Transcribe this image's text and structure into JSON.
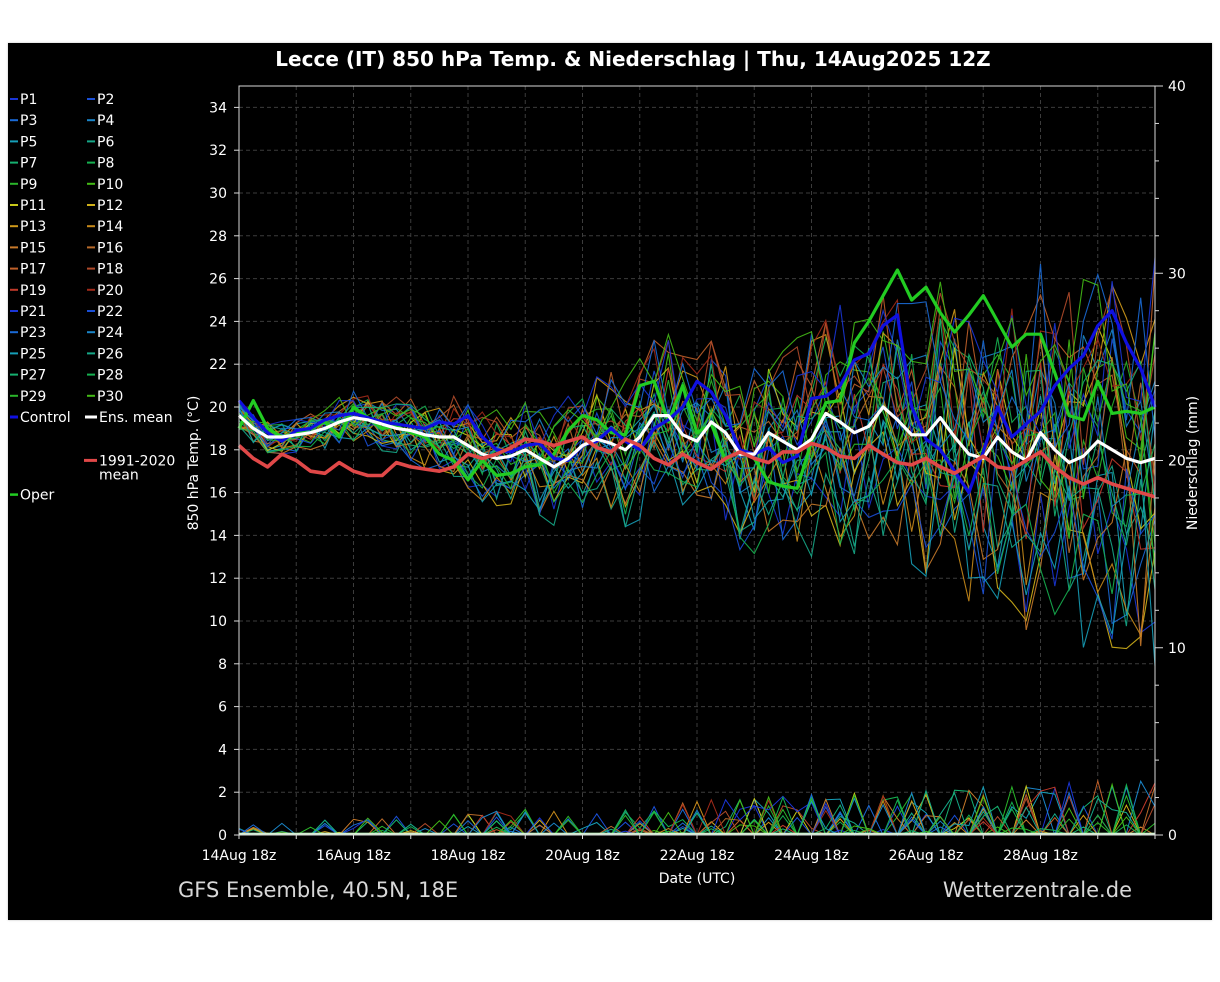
{
  "chart_data": {
    "type": "line",
    "title": "Lecce  (IT)  850 hPa Temp. & Niederschlag | Thu, 14Aug2025 12Z",
    "ylabel": "850 hPa Temp. (°C)",
    "y2label": "Niederschlag (mm)",
    "xlabel": "Date (UTC)",
    "ylim": [
      0,
      35
    ],
    "y2lim": [
      0,
      40
    ],
    "yticks": [
      0,
      2,
      4,
      6,
      8,
      10,
      12,
      14,
      16,
      18,
      20,
      22,
      24,
      26,
      28,
      30,
      32,
      34
    ],
    "y2ticks": [
      0,
      10,
      20,
      30,
      40
    ],
    "xticklabels": [
      "14Aug 18z",
      "16Aug 18z",
      "18Aug 18z",
      "20Aug 18z",
      "22Aug 18z",
      "24Aug 18z",
      "26Aug 18z",
      "28Aug 18z"
    ],
    "grid": true,
    "legend_position": "left",
    "footer_left": "GFS Ensemble, 40.5N, 18E",
    "footer_right": "Wetterzentrale.de",
    "x_hours": [
      0,
      6,
      12,
      18,
      24,
      30,
      36,
      42,
      48,
      54,
      60,
      66,
      72,
      78,
      84,
      90,
      96,
      102,
      108,
      114,
      120,
      126,
      132,
      138,
      144,
      150,
      156,
      162,
      168,
      174,
      180,
      186,
      192,
      198,
      204,
      210,
      216,
      222,
      228,
      234,
      240,
      246,
      252,
      258,
      264,
      270,
      276,
      282,
      288,
      294,
      300,
      306,
      312,
      318,
      324,
      330,
      336,
      342,
      348,
      354,
      360,
      366,
      372,
      378,
      384
    ],
    "legend": [
      {
        "label": "P1",
        "color": "#1a35d6"
      },
      {
        "label": "P2",
        "color": "#1a4fd6"
      },
      {
        "label": "P3",
        "color": "#1a6ad6"
      },
      {
        "label": "P4",
        "color": "#1a85c8"
      },
      {
        "label": "P5",
        "color": "#169fb8"
      },
      {
        "label": "P6",
        "color": "#16a888"
      },
      {
        "label": "P7",
        "color": "#16b070"
      },
      {
        "label": "P8",
        "color": "#16b050"
      },
      {
        "label": "P9",
        "color": "#2ab52a"
      },
      {
        "label": "P10",
        "color": "#44bb16"
      },
      {
        "label": "P11",
        "color": "#c8c81a"
      },
      {
        "label": "P12",
        "color": "#d0b01a"
      },
      {
        "label": "P13",
        "color": "#d09a1a"
      },
      {
        "label": "P14",
        "color": "#c88a1a"
      },
      {
        "label": "P15",
        "color": "#c87a2a"
      },
      {
        "label": "P16",
        "color": "#b86a2a"
      },
      {
        "label": "P17",
        "color": "#c0602a"
      },
      {
        "label": "P18",
        "color": "#b04a2a"
      },
      {
        "label": "P19",
        "color": "#c03a2a"
      },
      {
        "label": "P20",
        "color": "#a02a1a"
      },
      {
        "label": "P21",
        "color": "#1a35d6"
      },
      {
        "label": "P22",
        "color": "#1a4fd6"
      },
      {
        "label": "P23",
        "color": "#1a6ad6"
      },
      {
        "label": "P24",
        "color": "#1a85c8"
      },
      {
        "label": "P25",
        "color": "#169fb8"
      },
      {
        "label": "P26",
        "color": "#16a888"
      },
      {
        "label": "P27",
        "color": "#16b070"
      },
      {
        "label": "P28",
        "color": "#16b050"
      },
      {
        "label": "P29",
        "color": "#2ab52a"
      },
      {
        "label": "P30",
        "color": "#44bb16"
      },
      {
        "label": "Control",
        "color": "#1010e0"
      },
      {
        "label": "Ens. mean",
        "color": "#ffffff"
      },
      {
        "label": "1991-2020 mean",
        "color": "#e04848"
      },
      {
        "label": "Oper",
        "color": "#22cc22"
      }
    ],
    "series": [
      {
        "name": "Oper",
        "color": "#22cc22",
        "width": 3.2,
        "values": [
          19.0,
          20.3,
          19.0,
          18.6,
          18.8,
          19.0,
          19.3,
          18.6,
          20.0,
          19.5,
          19.0,
          19.1,
          18.8,
          18.6,
          17.8,
          17.5,
          16.6,
          17.5,
          16.8,
          16.9,
          17.2,
          17.3,
          17.8,
          18.9,
          19.6,
          19.4,
          18.8,
          18.7,
          21.0,
          21.2,
          19.3,
          21.0,
          18.8,
          19.2,
          17.5,
          18.0,
          17.6,
          16.5,
          16.3,
          16.2,
          18.4,
          20.2,
          20.3,
          23.0,
          24.0,
          25.2,
          26.4,
          25.0,
          25.6,
          24.4,
          23.5,
          24.3,
          25.2,
          24.0,
          22.8,
          23.4,
          23.4,
          21.6,
          19.6,
          19.4,
          21.2,
          19.7,
          19.8,
          19.7,
          20.0
        ]
      },
      {
        "name": "Control",
        "color": "#1010e0",
        "width": 3.2,
        "values": [
          20.3,
          19.5,
          18.8,
          18.4,
          18.9,
          19.0,
          19.4,
          19.6,
          19.7,
          19.5,
          19.3,
          19.2,
          19.1,
          19.0,
          19.3,
          19.2,
          19.6,
          18.6,
          18.0,
          17.9,
          18.2,
          18.3,
          17.6,
          17.5,
          18.2,
          18.4,
          19.0,
          18.4,
          18.0,
          19.0,
          19.4,
          20.0,
          21.2,
          20.7,
          19.6,
          18.0,
          17.8,
          18.1,
          17.4,
          17.7,
          20.4,
          20.5,
          21.0,
          22.2,
          22.5,
          23.8,
          24.3,
          20.0,
          18.5,
          18.0,
          17.0,
          16.0,
          17.9,
          20.0,
          18.6,
          19.2,
          19.8,
          21.0,
          21.8,
          22.4,
          23.8,
          24.5,
          23.0,
          21.8,
          20.0
        ]
      },
      {
        "name": "Ens. mean",
        "color": "#ffffff",
        "width": 3.2,
        "values": [
          19.6,
          19.0,
          18.6,
          18.6,
          18.7,
          18.8,
          19.0,
          19.3,
          19.5,
          19.4,
          19.2,
          19.0,
          18.9,
          18.7,
          18.6,
          18.6,
          18.2,
          17.8,
          17.6,
          17.7,
          18.0,
          17.6,
          17.2,
          17.6,
          18.2,
          18.5,
          18.3,
          18.0,
          18.6,
          19.6,
          19.6,
          18.7,
          18.4,
          19.3,
          18.8,
          17.8,
          17.8,
          18.8,
          18.4,
          18.0,
          18.5,
          19.7,
          19.3,
          18.8,
          19.1,
          20.0,
          19.4,
          18.7,
          18.7,
          19.5,
          18.6,
          17.8,
          17.6,
          18.6,
          17.9,
          17.5,
          18.8,
          18.0,
          17.4,
          17.7,
          18.4,
          18.0,
          17.6,
          17.4,
          17.6
        ]
      },
      {
        "name": "1991-2020 mean",
        "color": "#e04848",
        "width": 3.6,
        "values": [
          18.2,
          17.6,
          17.2,
          17.8,
          17.5,
          17.0,
          16.9,
          17.4,
          17.0,
          16.8,
          16.8,
          17.4,
          17.2,
          17.1,
          17.0,
          17.2,
          17.8,
          17.6,
          17.8,
          18.1,
          18.5,
          18.4,
          18.2,
          18.4,
          18.6,
          18.1,
          17.9,
          18.5,
          18.2,
          17.6,
          17.3,
          17.8,
          17.4,
          17.1,
          17.6,
          17.9,
          17.6,
          17.4,
          17.9,
          17.9,
          18.3,
          18.1,
          17.7,
          17.6,
          18.2,
          17.8,
          17.4,
          17.3,
          17.6,
          17.2,
          16.9,
          17.3,
          17.7,
          17.2,
          17.1,
          17.5,
          17.9,
          17.2,
          16.7,
          16.4,
          16.7,
          16.4,
          16.2,
          16.0,
          15.8
        ]
      }
    ]
  }
}
